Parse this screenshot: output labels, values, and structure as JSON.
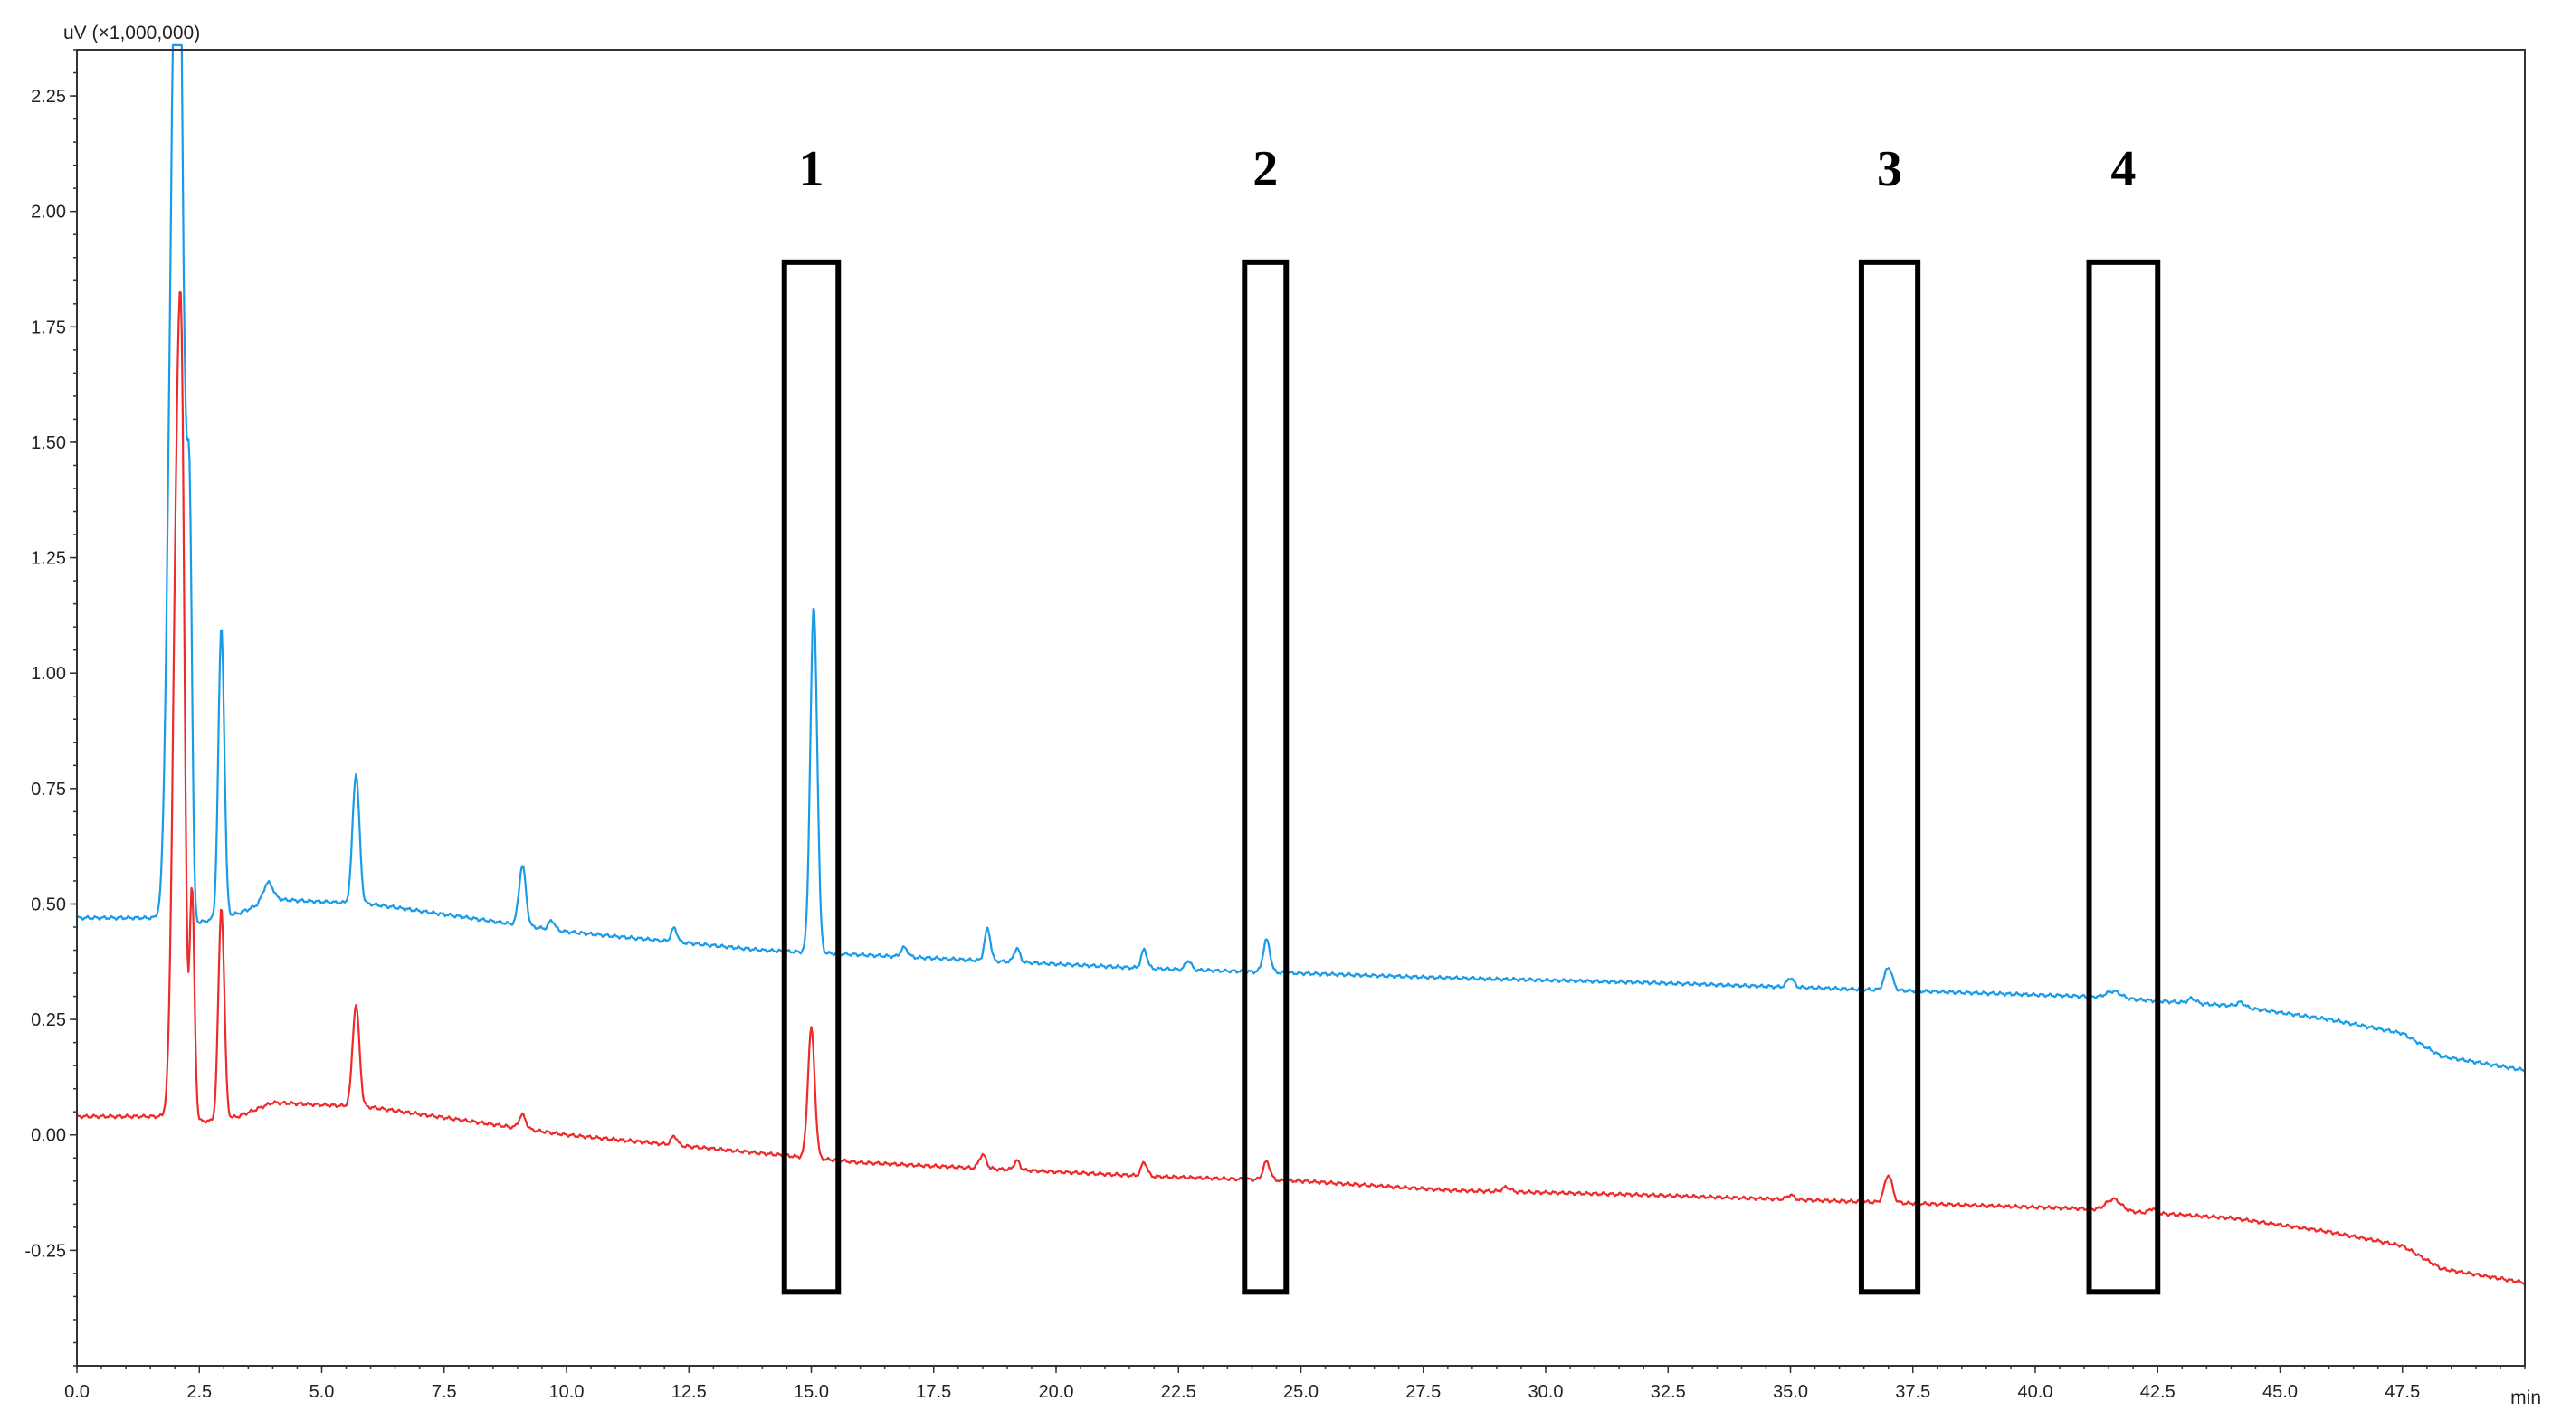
{
  "chart_data": {
    "type": "line",
    "title": "",
    "ylabel": "uV (×1,000,000)",
    "xlabel": "min",
    "xlim": [
      0,
      50
    ],
    "ylim": [
      -0.5,
      2.35
    ],
    "grid": false,
    "legend": "none",
    "y_ticks": [
      "2.25",
      "2.00",
      "1.75",
      "1.50",
      "1.25",
      "1.00",
      "0.75",
      "0.50",
      "0.25",
      "0.00",
      "-0.25"
    ],
    "y_tick_values": [
      2.25,
      2.0,
      1.75,
      1.5,
      1.25,
      1.0,
      0.75,
      0.5,
      0.25,
      0.0,
      -0.25
    ],
    "x_ticks": [
      "0.0",
      "2.5",
      "5.0",
      "7.5",
      "10.0",
      "12.5",
      "15.0",
      "17.5",
      "20.0",
      "22.5",
      "25.0",
      "27.5",
      "30.0",
      "32.5",
      "35.0",
      "37.5",
      "40.0",
      "42.5",
      "45.0",
      "47.5"
    ],
    "x_tick_values": [
      0,
      2.5,
      5,
      7.5,
      10,
      12.5,
      15,
      17.5,
      20,
      22.5,
      25,
      27.5,
      30,
      32.5,
      35,
      37.5,
      40,
      42.5,
      45,
      47.5
    ],
    "annotations": [
      {
        "label": "1",
        "x_range": [
          14.45,
          15.55
        ],
        "y_range": [
          -0.34,
          1.89
        ]
      },
      {
        "label": "2",
        "x_range": [
          23.85,
          24.7
        ],
        "y_range": [
          -0.34,
          1.89
        ]
      },
      {
        "label": "3",
        "x_range": [
          36.45,
          37.6
        ],
        "y_range": [
          -0.34,
          1.89
        ]
      },
      {
        "label": "4",
        "x_range": [
          41.1,
          42.5
        ],
        "y_range": [
          -0.34,
          1.89
        ]
      }
    ],
    "series": [
      {
        "color": "#1a9be8",
        "baseline": [
          [
            0,
            0.47
          ],
          [
            1.8,
            0.47
          ],
          [
            2.5,
            0.46
          ],
          [
            3.3,
            0.48
          ],
          [
            4.0,
            0.51
          ],
          [
            6.0,
            0.5
          ],
          [
            10.0,
            0.44
          ],
          [
            14.0,
            0.4
          ],
          [
            16.0,
            0.39
          ],
          [
            18.0,
            0.38
          ],
          [
            20.0,
            0.37
          ],
          [
            22.0,
            0.36
          ],
          [
            25.0,
            0.35
          ],
          [
            28.0,
            0.34
          ],
          [
            32.0,
            0.33
          ],
          [
            35.0,
            0.32
          ],
          [
            38.0,
            0.31
          ],
          [
            41.0,
            0.3
          ],
          [
            42.5,
            0.29
          ],
          [
            44.0,
            0.28
          ],
          [
            46.0,
            0.25
          ],
          [
            47.5,
            0.22
          ],
          [
            48.3,
            0.17
          ],
          [
            50.0,
            0.14
          ]
        ],
        "peaks": [
          [
            1.95,
            1.35,
            0.1
          ],
          [
            2.07,
            2.3,
            0.07
          ],
          [
            2.2,
            0.65,
            0.05
          ],
          [
            2.3,
            0.9,
            0.05
          ],
          [
            2.95,
            0.63,
            0.06
          ],
          [
            3.9,
            0.04,
            0.1
          ],
          [
            5.7,
            0.28,
            0.07
          ],
          [
            9.1,
            0.13,
            0.07
          ],
          [
            9.7,
            0.02,
            0.06
          ],
          [
            12.2,
            0.03,
            0.06
          ],
          [
            15.05,
            0.75,
            0.07
          ],
          [
            16.9,
            0.02,
            0.07
          ],
          [
            18.6,
            0.07,
            0.06
          ],
          [
            19.2,
            0.03,
            0.06
          ],
          [
            21.8,
            0.04,
            0.06
          ],
          [
            22.7,
            0.02,
            0.06
          ],
          [
            24.3,
            0.07,
            0.07
          ],
          [
            35.0,
            0.02,
            0.07
          ],
          [
            37.0,
            0.05,
            0.08
          ],
          [
            41.6,
            0.015,
            0.15
          ],
          [
            43.2,
            0.01,
            0.08
          ],
          [
            44.2,
            0.01,
            0.08
          ]
        ]
      },
      {
        "color": "#ee2a2a",
        "baseline": [
          [
            0,
            0.04
          ],
          [
            1.8,
            0.04
          ],
          [
            2.3,
            0.03
          ],
          [
            2.7,
            0.03
          ],
          [
            3.3,
            0.04
          ],
          [
            4.0,
            0.07
          ],
          [
            6.0,
            0.06
          ],
          [
            10.0,
            0.0
          ],
          [
            14.0,
            -0.04
          ],
          [
            16.0,
            -0.06
          ],
          [
            18.0,
            -0.07
          ],
          [
            20.0,
            -0.08
          ],
          [
            22.0,
            -0.09
          ],
          [
            25.0,
            -0.1
          ],
          [
            28.0,
            -0.12
          ],
          [
            32.0,
            -0.13
          ],
          [
            35.0,
            -0.14
          ],
          [
            38.0,
            -0.15
          ],
          [
            41.0,
            -0.16
          ],
          [
            42.5,
            -0.17
          ],
          [
            44.0,
            -0.18
          ],
          [
            46.0,
            -0.21
          ],
          [
            47.5,
            -0.24
          ],
          [
            48.3,
            -0.29
          ],
          [
            50.0,
            -0.32
          ]
        ],
        "peaks": [
          [
            2.05,
            1.35,
            0.09
          ],
          [
            2.15,
            0.9,
            0.06
          ],
          [
            2.35,
            0.5,
            0.05
          ],
          [
            2.95,
            0.46,
            0.06
          ],
          [
            5.7,
            0.22,
            0.07
          ],
          [
            9.1,
            0.03,
            0.07
          ],
          [
            12.2,
            0.02,
            0.06
          ],
          [
            15.0,
            0.28,
            0.07
          ],
          [
            18.5,
            0.03,
            0.07
          ],
          [
            19.2,
            0.02,
            0.06
          ],
          [
            21.8,
            0.03,
            0.06
          ],
          [
            24.3,
            0.04,
            0.07
          ],
          [
            29.2,
            0.01,
            0.08
          ],
          [
            35.0,
            0.01,
            0.07
          ],
          [
            37.0,
            0.06,
            0.08
          ],
          [
            41.6,
            0.025,
            0.15
          ],
          [
            42.4,
            0.01,
            0.07
          ]
        ]
      }
    ]
  }
}
